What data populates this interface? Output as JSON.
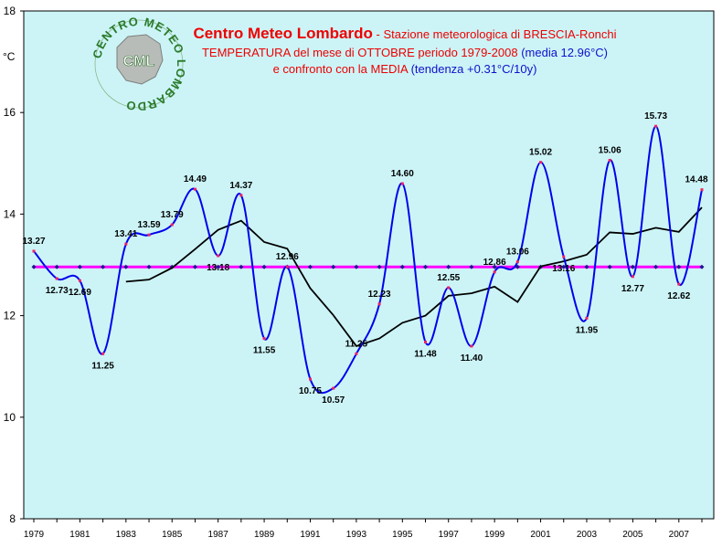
{
  "title": {
    "main": "Centro Meteo Lombardo",
    "station": " - Stazione meteorologica di BRESCIA-Ronchi",
    "line2": "TEMPERATURA del mese di OTTOBRE periodo 1979-2008",
    "line2_blue": " (media 12.96°C)",
    "line3": "e confronto con la MEDIA",
    "line3_blue": " (tendenza +0.31°C/10y)"
  },
  "logo": {
    "ring_text": "CENTRO METEO LOMBARDO",
    "center_text": "CML"
  },
  "colors": {
    "plot_background": "#ccf4f7",
    "series_line": "#0000ee",
    "series_marker": "#ee2266",
    "mean_line": "#ff00ff",
    "mean_marker": "#1a1a8c",
    "moving_average": "#000000"
  },
  "chart_data": {
    "type": "line",
    "ylabel": "°C",
    "ylim": [
      8,
      18
    ],
    "yticks": [
      8,
      10,
      12,
      14,
      16,
      18
    ],
    "xtick_labels": [
      "1979",
      "1981",
      "1983",
      "1985",
      "1987",
      "1989",
      "1991",
      "1993",
      "1995",
      "1997",
      "1999",
      "2001",
      "2003",
      "2005",
      "2007"
    ],
    "grid": false,
    "x": [
      1979,
      1980,
      1981,
      1982,
      1983,
      1984,
      1985,
      1986,
      1987,
      1988,
      1989,
      1990,
      1991,
      1992,
      1993,
      1994,
      1995,
      1996,
      1997,
      1998,
      1999,
      2000,
      2001,
      2002,
      2003,
      2004,
      2005,
      2006,
      2007,
      2008
    ],
    "series": [
      {
        "values": [
          13.27,
          12.73,
          12.69,
          11.25,
          13.41,
          13.59,
          13.79,
          14.49,
          13.18,
          14.37,
          11.55,
          12.96,
          10.75,
          10.57,
          11.25,
          12.23,
          14.6,
          11.48,
          12.55,
          11.4,
          12.86,
          13.06,
          15.02,
          13.16,
          11.95,
          15.06,
          12.77,
          15.73,
          12.62,
          14.48
        ],
        "data_labels": [
          "13.27",
          "12.73",
          "12.69",
          "11.25",
          "13.41",
          "13.59",
          "13.79",
          "14.49",
          "13.18",
          "14.37",
          "11.55",
          "12.96",
          "10.75",
          "10.57",
          "11.25",
          "12.23",
          "14.60",
          "11.48",
          "12.55",
          "11.40",
          "12.86",
          "13.06",
          "15.02",
          "13.16",
          "11.95",
          "15.06",
          "12.77",
          "15.73",
          "12.62",
          "14.48"
        ]
      },
      {
        "values": [
          12.96,
          12.96,
          12.96,
          12.96,
          12.96,
          12.96,
          12.96,
          12.96,
          12.96,
          12.96,
          12.96,
          12.96,
          12.96,
          12.96,
          12.96,
          12.96,
          12.96,
          12.96,
          12.96,
          12.96,
          12.96,
          12.96,
          12.96,
          12.96,
          12.96,
          12.96,
          12.96,
          12.96,
          12.96,
          12.96
        ]
      },
      {
        "x": [
          1983,
          1984,
          1985,
          1986,
          1987,
          1988,
          1989,
          1990,
          1991,
          1992,
          1993,
          1994,
          1995,
          1996,
          1997,
          1998,
          1999,
          2000,
          2001,
          2002,
          2003,
          2004,
          2005,
          2006,
          2007,
          2008
        ],
        "values": [
          12.67,
          12.71,
          12.94,
          13.31,
          13.69,
          13.87,
          13.45,
          13.32,
          12.54,
          12.01,
          11.4,
          11.55,
          11.86,
          12.0,
          12.39,
          12.44,
          12.57,
          12.27,
          12.97,
          13.07,
          13.2,
          13.64,
          13.61,
          13.73,
          13.65,
          14.13
        ]
      }
    ]
  }
}
